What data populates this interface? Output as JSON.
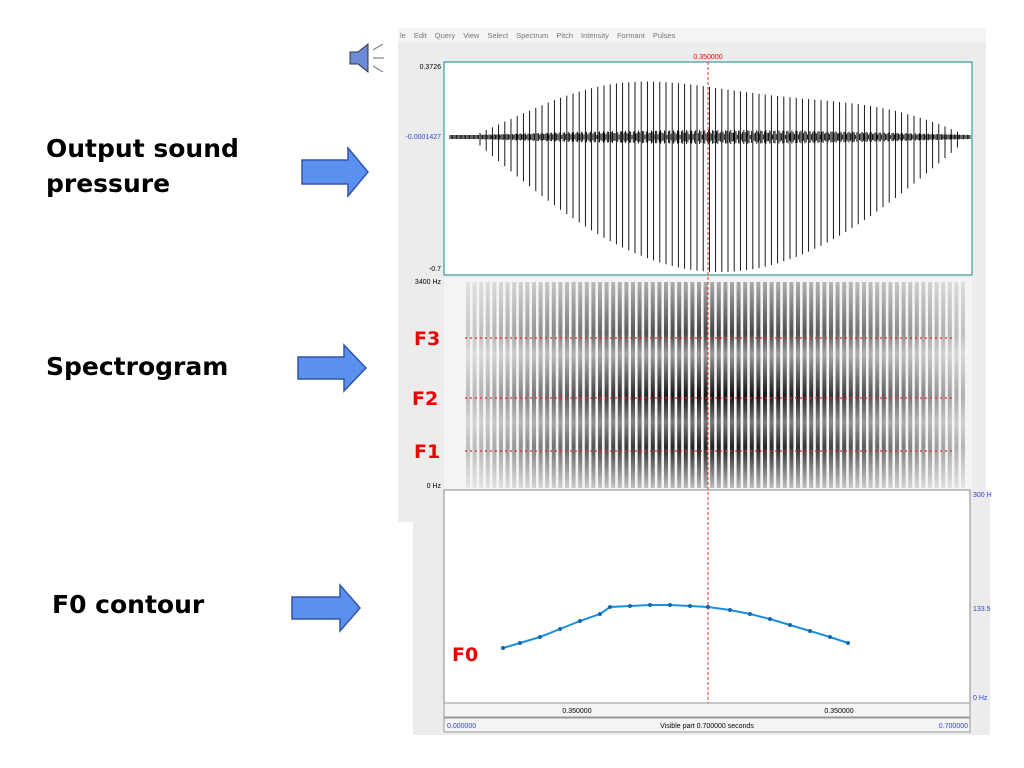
{
  "slide_labels": [
    "Output sound",
    "pressure",
    "Spectrogram",
    "F0 contour"
  ],
  "menu": [
    "le",
    "Edit",
    "Query",
    "View",
    "Select",
    "Spectrum",
    "Pitch",
    "Intensity",
    "Formant",
    "Pulses"
  ],
  "praat": {
    "cursor_time": "0.350000",
    "waveform_labels": [
      "0.3726",
      "-0.0001427",
      "-0.7"
    ],
    "spectrogram_labels": [
      "3400 Hz",
      "0 Hz"
    ],
    "formant_labels": [
      "F3",
      "F2",
      "F1"
    ],
    "pitch_labels": [
      "300 H",
      "133.5",
      "0 Hz"
    ],
    "f0_label": "F0",
    "time_row": [
      "0.350000",
      "0.350000"
    ],
    "bottom_row": [
      "0.000000",
      "Visible part 0.700000 seconds",
      "0.700000"
    ]
  }
}
